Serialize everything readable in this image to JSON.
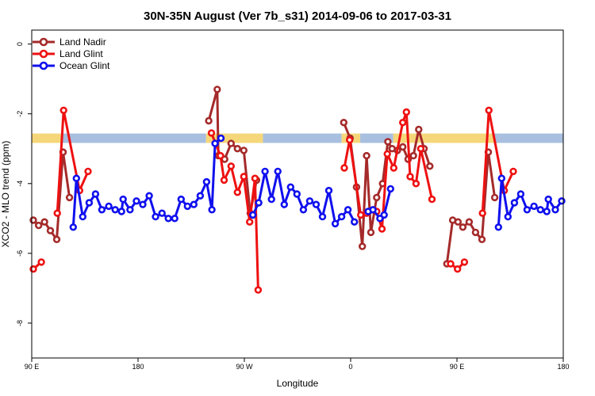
{
  "chart_data": {
    "type": "line",
    "title": "30N-35N August (Ver 7b_s31)   2014-09-06 to 2017-03-31",
    "xlabel": "Longitude",
    "ylabel": "XCO2 - MLO trend (ppm)",
    "xlim": [
      0,
      100
    ],
    "ylim": [
      -9,
      0.4
    ],
    "x_ticks": [
      {
        "pos": 0,
        "label": "90 E"
      },
      {
        "pos": 20,
        "label": "180"
      },
      {
        "pos": 40,
        "label": "90 W"
      },
      {
        "pos": 60,
        "label": "0"
      },
      {
        "pos": 80,
        "label": "90 E"
      },
      {
        "pos": 100,
        "label": "180"
      }
    ],
    "y_ticks": [
      {
        "value": 0,
        "label": "0"
      },
      {
        "value": -2,
        "label": "-2"
      },
      {
        "value": -4,
        "label": "-4"
      },
      {
        "value": -6,
        "label": "-6"
      },
      {
        "value": -8,
        "label": "-8"
      }
    ],
    "legend_position": "top-left",
    "band": {
      "y_center": -2.7,
      "height": 0.27,
      "colors": {
        "land": "#f5d77a",
        "ocean": "#a8bfe0"
      },
      "segments": [
        {
          "x0": 0.0,
          "x1": 5.5,
          "type": "land"
        },
        {
          "x0": 5.5,
          "x1": 32.8,
          "type": "ocean"
        },
        {
          "x0": 32.8,
          "x1": 43.5,
          "type": "land"
        },
        {
          "x0": 43.5,
          "x1": 58.3,
          "type": "ocean"
        },
        {
          "x0": 58.3,
          "x1": 61.8,
          "type": "land"
        },
        {
          "x0": 61.8,
          "x1": 68.0,
          "type": "ocean"
        },
        {
          "x0": 68.0,
          "x1": 87.0,
          "type": "land"
        },
        {
          "x0": 87.0,
          "x1": 100.0,
          "type": "ocean"
        }
      ]
    },
    "series": [
      {
        "name": "Land Nadir",
        "color": "#a52a2a",
        "segments": [
          [
            [
              0.3,
              -5.05
            ],
            [
              1.3,
              -5.2
            ],
            [
              2.4,
              -5.1
            ],
            [
              3.5,
              -5.35
            ],
            [
              4.7,
              -5.6
            ],
            [
              5.9,
              -3.1
            ],
            [
              7.1,
              -4.4
            ]
          ],
          [
            [
              33.3,
              -2.2
            ],
            [
              34.9,
              -1.3
            ],
            [
              35.1,
              -3.2
            ],
            [
              36.3,
              -3.3
            ],
            [
              37.5,
              -2.85
            ],
            [
              38.7,
              -3.0
            ],
            [
              39.9,
              -3.05
            ],
            [
              41.1,
              -4.85
            ],
            [
              42.3,
              -3.9
            ]
          ],
          [
            [
              58.7,
              -2.25
            ],
            [
              59.9,
              -2.7
            ],
            [
              61.1,
              -4.1
            ],
            [
              62.2,
              -5.8
            ],
            [
              63.0,
              -3.2
            ],
            [
              63.8,
              -5.4
            ],
            [
              64.9,
              -4.4
            ],
            [
              66.0,
              -4.0
            ],
            [
              67.0,
              -2.8
            ],
            [
              67.8,
              -3.0
            ],
            [
              68.8,
              -3.05
            ],
            [
              69.8,
              -2.95
            ],
            [
              70.8,
              -3.3
            ],
            [
              71.8,
              -3.2
            ],
            [
              72.8,
              -2.45
            ],
            [
              73.8,
              -3.0
            ],
            [
              74.9,
              -3.5
            ]
          ],
          [
            [
              78.1,
              -6.3
            ],
            [
              79.2,
              -5.05
            ],
            [
              80.2,
              -5.1
            ],
            [
              81.1,
              -5.25
            ],
            [
              82.3,
              -5.1
            ],
            [
              83.5,
              -5.4
            ],
            [
              84.7,
              -5.6
            ],
            [
              85.9,
              -3.1
            ],
            [
              87.1,
              -4.4
            ]
          ]
        ]
      },
      {
        "name": "Land Glint",
        "color": "#ee1111",
        "segments": [
          [
            [
              0.3,
              -6.45
            ],
            [
              1.8,
              -6.25
            ]
          ],
          [
            [
              4.8,
              -4.85
            ],
            [
              6.0,
              -1.9
            ],
            [
              9.0,
              -4.2
            ],
            [
              10.6,
              -3.65
            ]
          ],
          [
            [
              33.8,
              -2.55
            ],
            [
              35.5,
              -3.2
            ],
            [
              36.2,
              -3.9
            ],
            [
              37.5,
              -3.5
            ],
            [
              38.7,
              -4.25
            ],
            [
              39.9,
              -3.8
            ],
            [
              41.0,
              -5.1
            ],
            [
              42.0,
              -3.85
            ],
            [
              42.6,
              -7.05
            ]
          ],
          [
            [
              58.8,
              -3.55
            ],
            [
              59.8,
              -2.75
            ],
            [
              61.9,
              -4.9
            ],
            [
              63.0,
              -4.85
            ],
            [
              64.9,
              -4.8
            ],
            [
              65.9,
              -5.3
            ],
            [
              66.9,
              -3.15
            ],
            [
              68.1,
              -3.55
            ],
            [
              69.8,
              -2.25
            ],
            [
              70.5,
              -1.95
            ],
            [
              71.2,
              -3.8
            ],
            [
              72.3,
              -4.0
            ],
            [
              73.2,
              -3.0
            ],
            [
              75.3,
              -4.45
            ]
          ],
          [
            [
              78.8,
              -6.3
            ],
            [
              80.1,
              -6.45
            ],
            [
              81.4,
              -6.25
            ]
          ],
          [
            [
              84.8,
              -4.85
            ],
            [
              86.0,
              -1.9
            ],
            [
              88.9,
              -4.2
            ],
            [
              90.6,
              -3.65
            ]
          ]
        ]
      },
      {
        "name": "Ocean Glint",
        "color": "#1010ee",
        "segments": [
          [
            [
              7.8,
              -5.25
            ],
            [
              8.4,
              -3.85
            ],
            [
              9.6,
              -4.95
            ],
            [
              10.8,
              -4.55
            ],
            [
              12.0,
              -4.3
            ],
            [
              13.2,
              -4.75
            ],
            [
              14.5,
              -4.65
            ],
            [
              15.7,
              -4.75
            ],
            [
              16.9,
              -4.8
            ],
            [
              17.2,
              -4.45
            ],
            [
              18.5,
              -4.75
            ],
            [
              19.7,
              -4.5
            ],
            [
              20.9,
              -4.6
            ],
            [
              22.1,
              -4.35
            ],
            [
              23.3,
              -4.95
            ],
            [
              24.5,
              -4.85
            ],
            [
              25.7,
              -5.0
            ],
            [
              26.9,
              -5.0
            ],
            [
              28.1,
              -4.45
            ],
            [
              29.3,
              -4.65
            ],
            [
              30.5,
              -4.6
            ],
            [
              31.7,
              -4.35
            ],
            [
              32.9,
              -3.95
            ],
            [
              33.9,
              -4.75
            ],
            [
              34.5,
              -2.85
            ],
            [
              35.6,
              -2.7
            ]
          ],
          [
            [
              41.6,
              -4.9
            ],
            [
              42.7,
              -4.55
            ],
            [
              43.9,
              -3.65
            ],
            [
              45.1,
              -4.45
            ],
            [
              46.3,
              -3.65
            ],
            [
              47.5,
              -4.6
            ],
            [
              48.7,
              -4.1
            ],
            [
              49.9,
              -4.3
            ],
            [
              51.1,
              -4.75
            ],
            [
              52.3,
              -4.5
            ],
            [
              53.5,
              -4.6
            ],
            [
              54.7,
              -4.95
            ],
            [
              55.9,
              -4.2
            ],
            [
              57.1,
              -5.15
            ],
            [
              58.3,
              -4.95
            ],
            [
              59.5,
              -4.75
            ],
            [
              60.7,
              -5.1
            ]
          ],
          [
            [
              63.3,
              -4.8
            ],
            [
              64.2,
              -4.75
            ],
            [
              65.5,
              -5.0
            ],
            [
              66.3,
              -4.9
            ],
            [
              67.5,
              -4.15
            ]
          ],
          [
            [
              87.8,
              -5.25
            ],
            [
              88.4,
              -3.85
            ],
            [
              89.6,
              -4.95
            ],
            [
              90.8,
              -4.55
            ],
            [
              92.0,
              -4.3
            ],
            [
              93.2,
              -4.75
            ],
            [
              94.5,
              -4.65
            ],
            [
              95.7,
              -4.75
            ],
            [
              96.9,
              -4.8
            ],
            [
              97.2,
              -4.45
            ],
            [
              98.5,
              -4.75
            ],
            [
              99.7,
              -4.5
            ]
          ]
        ]
      }
    ]
  }
}
